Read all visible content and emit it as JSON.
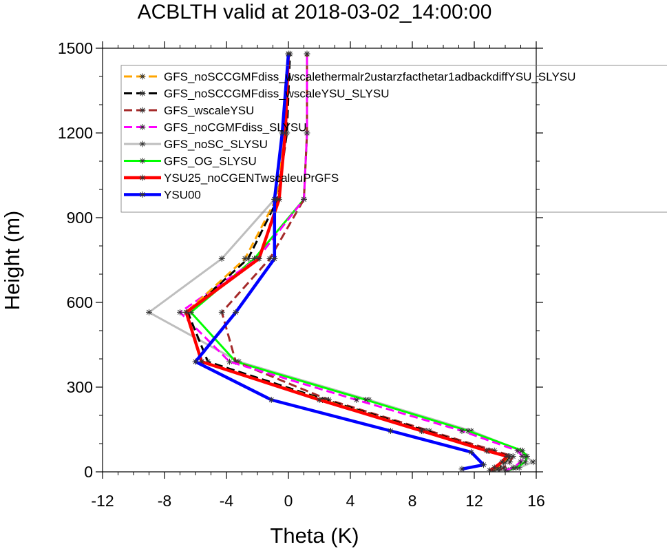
{
  "chart_data": {
    "type": "line",
    "title": "ACBLTH valid at 2018-03-02_14:00:00",
    "xlabel": "Theta (K)",
    "ylabel": "Height (m)",
    "xlim": [
      -12,
      16
    ],
    "ylim": [
      0,
      1500
    ],
    "x_ticks": [
      -12,
      -8,
      -4,
      0,
      4,
      8,
      12,
      16
    ],
    "y_ticks": [
      0,
      300,
      600,
      900,
      1200,
      1500
    ],
    "grid": false,
    "legend_position": "top-right",
    "series": [
      {
        "name": "GFS_noSCCGMFdiss_wscalethermalr2ustarzfacthetar1adbackdiffYSU_SLYSU",
        "color": "#ffa500",
        "dash": "dashed",
        "width": 3,
        "points": [
          [
            13.2,
            5
          ],
          [
            13.5,
            15
          ],
          [
            13.9,
            35
          ],
          [
            14.2,
            55
          ],
          [
            12.9,
            75
          ],
          [
            8.7,
            145
          ],
          [
            2.2,
            255
          ],
          [
            -5.6,
            390
          ],
          [
            -6.6,
            565
          ],
          [
            -2.8,
            755
          ],
          [
            -0.8,
            965
          ],
          [
            -0.2,
            1200
          ],
          [
            0,
            1480
          ]
        ]
      },
      {
        "name": "GFS_noSCCGMFdiss_wscaleYSU_SLYSU",
        "color": "#000000",
        "dash": "dashed",
        "width": 3,
        "points": [
          [
            13.3,
            5
          ],
          [
            13.6,
            15
          ],
          [
            14.0,
            35
          ],
          [
            14.3,
            55
          ],
          [
            13.0,
            75
          ],
          [
            8.9,
            145
          ],
          [
            2.4,
            255
          ],
          [
            -5.2,
            390
          ],
          [
            -6.5,
            565
          ],
          [
            -2.6,
            755
          ],
          [
            -0.7,
            965
          ],
          [
            -0.1,
            1200
          ],
          [
            0.1,
            1480
          ]
        ]
      },
      {
        "name": "GFS_wscaleYSU",
        "color": "#a52a2a",
        "dash": "dashed",
        "width": 3,
        "points": [
          [
            13.6,
            5
          ],
          [
            13.9,
            15
          ],
          [
            14.3,
            35
          ],
          [
            14.5,
            55
          ],
          [
            13.3,
            75
          ],
          [
            9.1,
            145
          ],
          [
            2.6,
            255
          ],
          [
            -3.4,
            390
          ],
          [
            -4.3,
            565
          ],
          [
            -1.2,
            755
          ],
          [
            1.0,
            965
          ],
          [
            1.2,
            1200
          ],
          [
            1.2,
            1480
          ]
        ]
      },
      {
        "name": "GFS_noCGMFdiss_SLYSU",
        "color": "#ff00ff",
        "dash": "dashed",
        "width": 3,
        "points": [
          [
            14.0,
            5
          ],
          [
            14.5,
            15
          ],
          [
            15.0,
            35
          ],
          [
            15.1,
            55
          ],
          [
            14.8,
            75
          ],
          [
            11.2,
            145
          ],
          [
            4.4,
            255
          ],
          [
            -3.8,
            390
          ],
          [
            -7.0,
            565
          ],
          [
            -2.0,
            755
          ],
          [
            1.0,
            965
          ],
          [
            1.2,
            1200
          ],
          [
            1.2,
            1480
          ]
        ]
      },
      {
        "name": "GFS_noSC_SLYSU",
        "color": "#bebebe",
        "dash": "solid",
        "width": 3,
        "points": [
          [
            14.2,
            5
          ],
          [
            14.9,
            15
          ],
          [
            15.8,
            35
          ],
          [
            15.3,
            55
          ],
          [
            15.0,
            75
          ],
          [
            11.8,
            145
          ],
          [
            5.2,
            255
          ],
          [
            -3.2,
            390
          ],
          [
            -9.0,
            565
          ],
          [
            -4.3,
            755
          ],
          [
            -0.9,
            965
          ],
          [
            -0.3,
            1200
          ],
          [
            0,
            1480
          ]
        ]
      },
      {
        "name": "GFS_OG_SLYSU",
        "color": "#00ff00",
        "dash": "solid",
        "width": 3,
        "points": [
          [
            14.1,
            5
          ],
          [
            14.7,
            15
          ],
          [
            15.3,
            35
          ],
          [
            15.4,
            55
          ],
          [
            15.1,
            75
          ],
          [
            11.6,
            145
          ],
          [
            5.0,
            255
          ],
          [
            -3.4,
            390
          ],
          [
            -6.3,
            565
          ],
          [
            -2.2,
            755
          ],
          [
            1.0,
            965
          ],
          [
            1.2,
            1200
          ],
          [
            1.2,
            1480
          ]
        ]
      },
      {
        "name": "YSU25_noCGENTwscaleuPrGFS",
        "color": "#ff0000",
        "dash": "solid",
        "width": 4.5,
        "points": [
          [
            13.0,
            5
          ],
          [
            13.3,
            15
          ],
          [
            13.8,
            35
          ],
          [
            14.1,
            55
          ],
          [
            12.8,
            75
          ],
          [
            8.6,
            145
          ],
          [
            2.0,
            255
          ],
          [
            -5.6,
            390
          ],
          [
            -6.6,
            565
          ],
          [
            -1.9,
            755
          ],
          [
            -0.6,
            965
          ],
          [
            -0.2,
            1200
          ],
          [
            0,
            1480
          ]
        ]
      },
      {
        "name": "YSU00",
        "color": "#0000ff",
        "dash": "solid",
        "width": 4.5,
        "points": [
          [
            11.2,
            10
          ],
          [
            12.6,
            25
          ],
          [
            11.8,
            70
          ],
          [
            6.6,
            145
          ],
          [
            -1.1,
            255
          ],
          [
            -6.0,
            390
          ],
          [
            -3.4,
            565
          ],
          [
            -0.9,
            755
          ],
          [
            -0.9,
            965
          ],
          [
            -0.4,
            1200
          ],
          [
            0,
            1480
          ]
        ]
      }
    ]
  }
}
